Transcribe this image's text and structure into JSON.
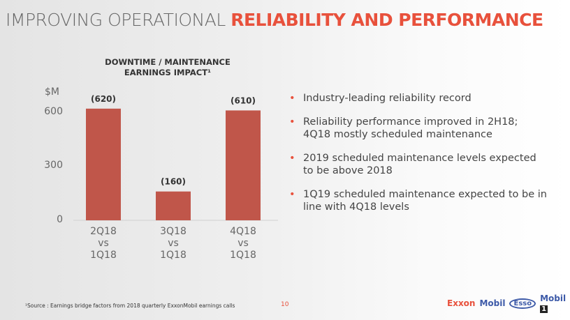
{
  "title": {
    "part1": "IMPROVING OPERATIONAL ",
    "part2": "RELIABILITY AND PERFORMANCE"
  },
  "chart_data": {
    "type": "bar",
    "title": "DOWNTIME / MAINTENANCE EARNINGS IMPACT¹",
    "ylabel": "$M",
    "ylim": [
      0,
      600
    ],
    "yticks": [
      "0",
      "300",
      "600"
    ],
    "categories": [
      "2Q18\nvs\n1Q18",
      "3Q18\nvs\n1Q18",
      "4Q18\nvs\n1Q18"
    ],
    "values": [
      620,
      160,
      610
    ],
    "labels": [
      "(620)",
      "(160)",
      "(610)"
    ],
    "color": "#c0564a"
  },
  "bullets": [
    "Industry-leading reliability record",
    "Reliability performance improved in 2H18; 4Q18 mostly scheduled maintenance",
    "2019 scheduled maintenance levels expected to be above 2018",
    "1Q19 scheduled maintenance expected to be in line with 4Q18 levels"
  ],
  "footnote": "¹Source : Earnings bridge factors from 2018 quarterly ExxonMobil earnings calls",
  "page": "10",
  "logos": {
    "exxon": "Exxon",
    "mobil": "Mobil",
    "esso": "Esso",
    "mobil1": "Mobil",
    "one": "1"
  }
}
